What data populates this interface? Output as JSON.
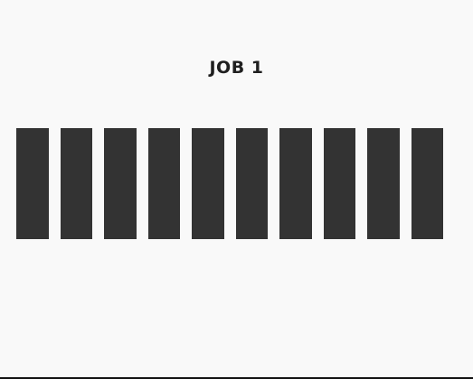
{
  "job": {
    "title": "JOB 1",
    "bar_count": 10,
    "bar_color": "#333333"
  },
  "colors": {
    "background": "#f9f9f9",
    "text": "#1f1f1f",
    "bottom_border": "#111111"
  }
}
